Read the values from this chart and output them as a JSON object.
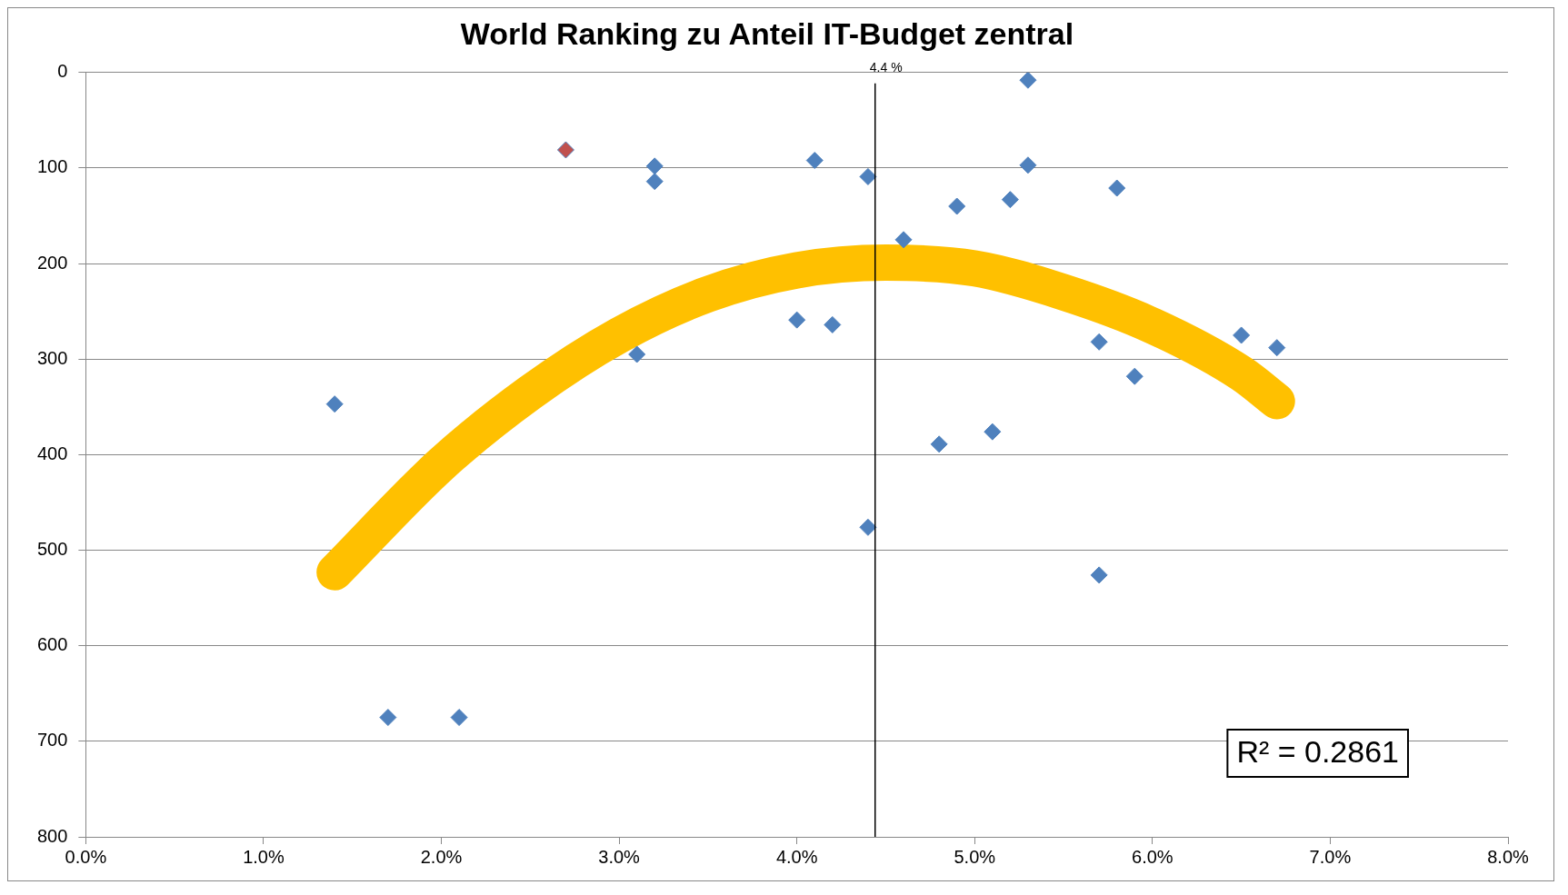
{
  "chart_data": {
    "type": "scatter",
    "title": "World Ranking zu Anteil IT-Budget zentral",
    "xlim": [
      0,
      8
    ],
    "xticks": [
      {
        "value": 0,
        "label": "0.0%"
      },
      {
        "value": 1,
        "label": "1.0%"
      },
      {
        "value": 2,
        "label": "2.0%"
      },
      {
        "value": 3,
        "label": "3.0%"
      },
      {
        "value": 4,
        "label": "4.0%"
      },
      {
        "value": 5,
        "label": "5.0%"
      },
      {
        "value": 6,
        "label": "6.0%"
      },
      {
        "value": 7,
        "label": "7.0%"
      },
      {
        "value": 8,
        "label": "8.0%"
      }
    ],
    "ylim": [
      800,
      0
    ],
    "yticks": [
      0,
      100,
      200,
      300,
      400,
      500,
      600,
      700,
      800
    ],
    "grid": "y",
    "legend": false,
    "marker": "diamond",
    "series": [
      {
        "color": "#4f81bd",
        "x": [
          1.4,
          1.7,
          2.1,
          2.7,
          3.2,
          3.2,
          3.1,
          4.0,
          4.1,
          4.2,
          4.4,
          4.4,
          4.6,
          4.8,
          4.9,
          5.1,
          5.2,
          5.3,
          5.3,
          5.7,
          5.7,
          5.8,
          5.9,
          6.5,
          6.7
        ],
        "values": [
          347,
          675,
          675,
          81,
          98,
          114,
          295,
          259,
          92,
          264,
          109,
          476,
          175,
          389,
          140,
          376,
          133,
          8,
          97,
          282,
          526,
          121,
          318,
          275,
          288
        ],
        "colors": [
          "#4f81bd",
          "#4f81bd",
          "#4f81bd",
          "#c0504d",
          "#4f81bd",
          "#4f81bd",
          "#4f81bd",
          "#4f81bd",
          "#4f81bd",
          "#4f81bd",
          "#4f81bd",
          "#4f81bd",
          "#4f81bd",
          "#4f81bd",
          "#4f81bd",
          "#4f81bd",
          "#4f81bd",
          "#4f81bd",
          "#4f81bd",
          "#4f81bd",
          "#4f81bd",
          "#4f81bd",
          "#4f81bd",
          "#4f81bd",
          "#4f81bd"
        ]
      },
      {
        "type": "line",
        "color": "#ffc000",
        "marker": "none",
        "x": [
          1.4,
          2.0,
          2.5,
          3.0,
          3.5,
          4.0,
          4.5,
          5.0,
          5.5,
          6.0,
          6.5,
          6.7
        ],
        "values": [
          523,
          410,
          335,
          275,
          232,
          207,
          199,
          205,
          230,
          265,
          315,
          344
        ]
      }
    ],
    "ref_lines": [
      {
        "axis": "x",
        "value": 4.44,
        "label": "4.4 %",
        "color": "#000000"
      }
    ],
    "annotations": [
      "R² = 0.2861"
    ]
  }
}
